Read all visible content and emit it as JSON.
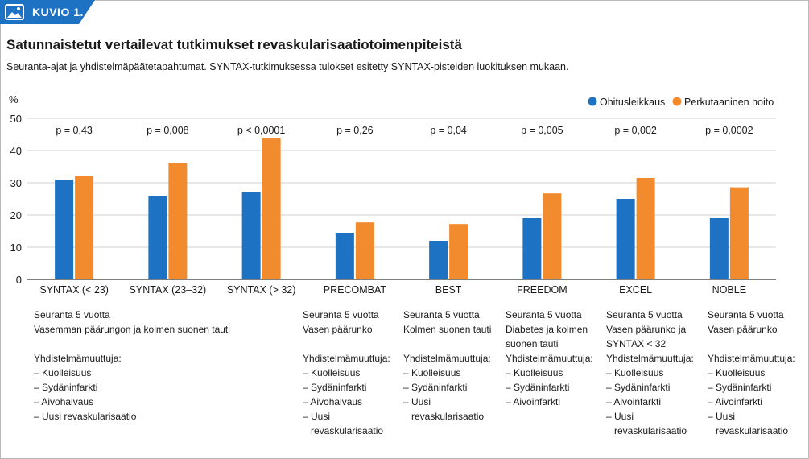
{
  "badge": {
    "label": "KUVIO 1."
  },
  "header": {
    "title": "Satunnaistetut vertailevat tutkimukset revaskularisaatiotoimenpiteistä",
    "subtitle": "Seuranta-ajat ja yhdistelmäpäätetapahtumat. SYNTAX-tutkimuksessa tulokset esitetty SYNTAX-pisteiden luokituksen mukaan."
  },
  "colors": {
    "accent": "#1d72c3",
    "cabg": "#1d72c3",
    "pci": "#f28a2e",
    "grid": "#d0d0d0"
  },
  "chart_data": {
    "type": "bar",
    "ylabel": "%",
    "ylim": [
      0,
      50
    ],
    "yticks": [
      0,
      10,
      20,
      30,
      40,
      50
    ],
    "grid": true,
    "legend_position": "top-right",
    "categories": [
      "SYNTAX (< 23)",
      "SYNTAX (23–32)",
      "SYNTAX (> 32)",
      "PRECOMBAT",
      "BEST",
      "FREEDOM",
      "EXCEL",
      "NOBLE"
    ],
    "series": [
      {
        "name": "Ohitusleikkaus",
        "values": [
          31,
          26,
          27,
          14.5,
          12,
          19,
          25,
          19
        ]
      },
      {
        "name": "Perkutaaninen hoito",
        "values": [
          32,
          36,
          44,
          17.7,
          17.2,
          26.7,
          31.5,
          28.6
        ]
      }
    ],
    "annotations": [
      "p = 0,43",
      "p = 0,008",
      "p < 0,0001",
      "p = 0,26",
      "p = 0,04",
      "p = 0,005",
      "p = 0,002",
      "p = 0,0002"
    ]
  },
  "notes": [
    {
      "lines": [
        {
          "t": "Seuranta 5 vuotta"
        },
        {
          "t": "Vasemman päärungon ja kolmen suonen tauti"
        },
        {
          "gap": true
        },
        {
          "t": "Yhdistelmämuuttuja:"
        },
        {
          "t": "– Kuolleisuus"
        },
        {
          "t": "– Sydäninfarkti"
        },
        {
          "t": "– Aivohalvaus"
        },
        {
          "t": "– Uusi revaskularisaatio"
        }
      ]
    },
    {
      "lines": [
        {
          "t": "Seuranta 5 vuotta"
        },
        {
          "t": "Vasen päärunko"
        },
        {
          "gap": true
        },
        {
          "t": "Yhdistelmämuuttuja:"
        },
        {
          "t": "– Kuolleisuus"
        },
        {
          "t": "– Sydäninfarkti"
        },
        {
          "t": "– Aivohalvaus"
        },
        {
          "t": "– Uusi"
        },
        {
          "t": "revaskularisaatio",
          "indent": true
        }
      ]
    },
    {
      "lines": [
        {
          "t": "Seuranta 5 vuotta"
        },
        {
          "t": "Kolmen suonen tauti"
        },
        {
          "gap": true
        },
        {
          "t": "Yhdistelmämuuttuja:"
        },
        {
          "t": "– Kuolleisuus"
        },
        {
          "t": "– Sydäninfarkti"
        },
        {
          "t": "– Uusi"
        },
        {
          "t": "revaskularisaatio",
          "indent": true
        }
      ]
    },
    {
      "lines": [
        {
          "t": "Seuranta 5 vuotta"
        },
        {
          "t": "Diabetes ja kolmen"
        },
        {
          "t": "suonen tauti"
        },
        {
          "t": "Yhdistelmämuuttuja:"
        },
        {
          "t": "– Kuolleisuus"
        },
        {
          "t": "– Sydäninfarkti"
        },
        {
          "t": "– Aivoinfarkti"
        }
      ]
    },
    {
      "lines": [
        {
          "t": "Seuranta 5 vuotta"
        },
        {
          "t": "Vasen päärunko ja"
        },
        {
          "t": "SYNTAX < 32"
        },
        {
          "t": "Yhdistelmämuuttuja:"
        },
        {
          "t": "– Kuolleisuus"
        },
        {
          "t": "– Sydäninfarkti"
        },
        {
          "t": "– Aivoinfarkti"
        },
        {
          "t": "– Uusi"
        },
        {
          "t": "revaskularisaatio",
          "indent": true
        }
      ]
    },
    {
      "lines": [
        {
          "t": "Seuranta 5 vuotta"
        },
        {
          "t": "Vasen päärunko"
        },
        {
          "gap": true
        },
        {
          "t": "Yhdistelmämuuttuja:"
        },
        {
          "t": "– Kuolleisuus"
        },
        {
          "t": "– Sydäninfarkti"
        },
        {
          "t": "– Aivoinfarkti"
        },
        {
          "t": "– Uusi"
        },
        {
          "t": "revaskularisaatio",
          "indent": true
        }
      ]
    }
  ]
}
